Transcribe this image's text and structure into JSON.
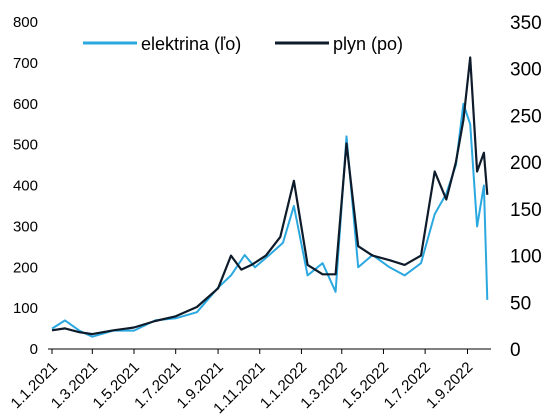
{
  "chart_data": {
    "type": "line",
    "title": "",
    "legend_position": "top-center",
    "grid": false,
    "colors": {
      "elektrina": "#2aa8df",
      "plyn": "#0d1b2a"
    },
    "x_tick_labels": [
      "1.1.2021",
      "1.3.2021",
      "1.5.2021",
      "1.7.2021",
      "1.9.2021",
      "1.11.2021",
      "1.1.2022",
      "1.3.2022",
      "1.5.2022",
      "1.7.2022",
      "1.9.2022"
    ],
    "y_left": {
      "ticks": [
        "0",
        "100",
        "200",
        "300",
        "400",
        "500",
        "600",
        "700",
        "800"
      ],
      "range": [
        0,
        800
      ]
    },
    "y_right": {
      "ticks": [
        "0",
        "50",
        "100",
        "150",
        "200",
        "250",
        "300",
        "350"
      ],
      "range": [
        0,
        350
      ]
    },
    "series": [
      {
        "name": "elektrina (ľo)",
        "axis": "left",
        "dates": [
          "2021-01-01",
          "2021-01-20",
          "2021-02-10",
          "2021-03-01",
          "2021-04-01",
          "2021-05-01",
          "2021-06-01",
          "2021-07-01",
          "2021-08-01",
          "2021-09-01",
          "2021-09-20",
          "2021-10-10",
          "2021-10-25",
          "2021-11-15",
          "2021-12-05",
          "2021-12-21",
          "2022-01-10",
          "2022-02-01",
          "2022-02-20",
          "2022-03-08",
          "2022-03-25",
          "2022-04-15",
          "2022-05-10",
          "2022-06-01",
          "2022-06-25",
          "2022-07-15",
          "2022-08-01",
          "2022-08-15",
          "2022-08-26",
          "2022-09-05",
          "2022-09-15",
          "2022-09-25",
          "2022-09-30"
        ],
        "values": [
          50,
          70,
          45,
          30,
          45,
          45,
          70,
          75,
          90,
          150,
          180,
          230,
          200,
          230,
          260,
          350,
          180,
          210,
          140,
          520,
          200,
          230,
          200,
          180,
          210,
          330,
          380,
          450,
          600,
          550,
          300,
          400,
          120
        ]
      },
      {
        "name": "plyn (po)",
        "axis": "right",
        "dates": [
          "2021-01-01",
          "2021-01-20",
          "2021-02-10",
          "2021-03-01",
          "2021-04-01",
          "2021-05-01",
          "2021-06-01",
          "2021-07-01",
          "2021-08-01",
          "2021-09-01",
          "2021-09-20",
          "2021-10-05",
          "2021-10-20",
          "2021-11-10",
          "2021-12-01",
          "2021-12-21",
          "2022-01-10",
          "2022-02-01",
          "2022-02-20",
          "2022-03-08",
          "2022-03-25",
          "2022-04-15",
          "2022-05-10",
          "2022-06-01",
          "2022-06-25",
          "2022-07-15",
          "2022-08-01",
          "2022-08-15",
          "2022-08-26",
          "2022-09-05",
          "2022-09-15",
          "2022-09-25",
          "2022-09-30"
        ],
        "values": [
          20,
          22,
          18,
          16,
          20,
          23,
          30,
          35,
          45,
          65,
          100,
          85,
          90,
          100,
          120,
          180,
          90,
          80,
          80,
          220,
          110,
          100,
          95,
          90,
          100,
          190,
          160,
          200,
          245,
          312,
          190,
          210,
          165
        ]
      }
    ]
  }
}
